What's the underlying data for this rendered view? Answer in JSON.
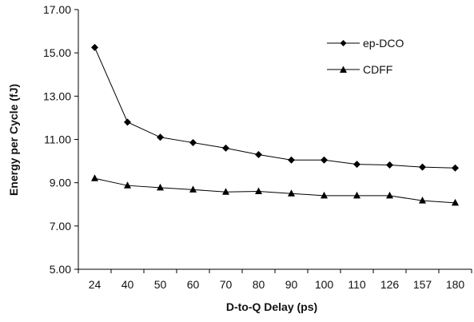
{
  "chart_data": {
    "type": "line",
    "title": "",
    "xlabel": "D-to-Q Delay (ps)",
    "ylabel": "Energy per Cycle (fJ)",
    "categories": [
      "24",
      "40",
      "50",
      "60",
      "70",
      "80",
      "90",
      "100",
      "110",
      "126",
      "157",
      "180"
    ],
    "ylim": [
      5.0,
      17.0
    ],
    "yticks": [
      "5.00",
      "7.00",
      "9.00",
      "11.00",
      "13.00",
      "15.00",
      "17.00"
    ],
    "grid": false,
    "legend_position": "top-right",
    "series": [
      {
        "name": "ep-DCO",
        "marker": "diamond",
        "values": [
          15.25,
          11.8,
          11.1,
          10.85,
          10.6,
          10.3,
          10.05,
          10.05,
          9.85,
          9.82,
          9.72,
          9.68
        ]
      },
      {
        "name": "CDFF",
        "marker": "triangle",
        "values": [
          9.2,
          8.87,
          8.77,
          8.68,
          8.57,
          8.6,
          8.5,
          8.4,
          8.4,
          8.4,
          8.17,
          8.07
        ]
      }
    ]
  }
}
